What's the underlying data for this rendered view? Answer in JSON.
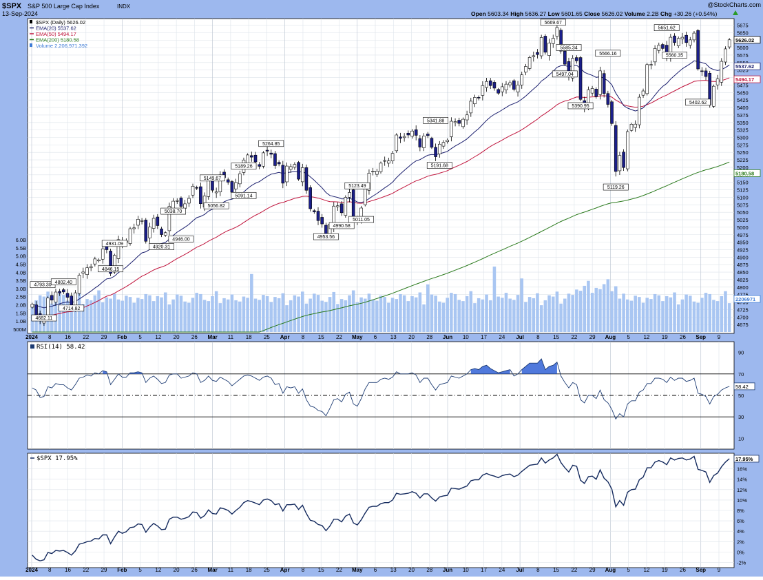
{
  "header": {
    "symbol": "$SPX",
    "name": "S&P 500 Large Cap Index",
    "exchange": "INDX",
    "date": "13-Sep-2024",
    "watermark": "@StockCharts.com",
    "ohlc": {
      "open_label": "Open",
      "open": "5603.34",
      "high_label": "High",
      "high": "5636.27",
      "low_label": "Low",
      "low": "5601.65",
      "close_label": "Close",
      "close": "5626.02",
      "volume_label": "Volume",
      "volume": "2.2B",
      "chg_label": "Chg",
      "chg": "+30.26 (+0.54%)",
      "chg_icon": "triangle-up-icon"
    }
  },
  "price_legend": [
    {
      "text": "$SPX (Daily) 5626.02",
      "color": "#000000",
      "marker": "candle-icon"
    },
    {
      "text": "EMA(20) 5537.62",
      "color": "#1b1f6e",
      "marker": "line"
    },
    {
      "text": "EMA(50) 5494.17",
      "color": "#c0143c",
      "marker": "line"
    },
    {
      "text": "EMA(200) 5180.58",
      "color": "#2a7a1c",
      "marker": "line"
    },
    {
      "text": "Volume 2,206,971,392",
      "color": "#3d7bd6",
      "marker": "volume-icon"
    }
  ],
  "colors": {
    "frame": "#9db8ee",
    "up_candle": "#ffffff",
    "down_candle": "#1b1f8a",
    "ema20": "#1b1f6e",
    "ema50": "#c0143c",
    "ema200": "#2a7a1c",
    "volume": "#a9c6f2",
    "rsi_line": "#1b3a72",
    "rsi_fill": "#3d6ad8",
    "perf_line": "#142a5e",
    "grid": "#dde3ea"
  },
  "rsi_panel": {
    "label": "RSI(14) 58.42",
    "current": "58.42",
    "ticks": [
      "90",
      "70",
      "50",
      "30",
      "10"
    ]
  },
  "perf_panel": {
    "label": "$SPX 17.95%",
    "current": "17.95%",
    "ticks": [
      "16%",
      "14%",
      "12%",
      "10%",
      "8%",
      "6%",
      "4%",
      "2%",
      "0%",
      "-2%"
    ]
  },
  "chart_data": {
    "type": "line",
    "title": "$SPX S&P 500 Large Cap Index INDX",
    "subtitle": "13-Sep-2024",
    "x_labels": [
      "2024",
      "8",
      "16",
      "22",
      "29",
      "Feb",
      "5",
      "12",
      "20",
      "26",
      "Mar",
      "11",
      "18",
      "25",
      "Apr",
      "8",
      "15",
      "22",
      "May",
      "6",
      "13",
      "20",
      "28",
      "Jun",
      "10",
      "17",
      "24",
      "Jul",
      "8",
      "15",
      "22",
      "29",
      "Aug",
      "5",
      "12",
      "19",
      "26",
      "Sep",
      "9"
    ],
    "y_ticks": [
      "5675",
      "5650",
      "5625",
      "5600",
      "5575",
      "5550",
      "5525",
      "5500",
      "5475",
      "5450",
      "5425",
      "5400",
      "5375",
      "5350",
      "5325",
      "5300",
      "5275",
      "5250",
      "5225",
      "5200",
      "5175",
      "5150",
      "5125",
      "5100",
      "5075",
      "5050",
      "5025",
      "5000",
      "4975",
      "4950",
      "4925",
      "4900",
      "4875",
      "4850",
      "4825",
      "4800",
      "4775",
      "4750",
      "4725",
      "4700",
      "4675"
    ],
    "ylim": [
      4650,
      5690
    ],
    "volume_ticks": [
      "6.0B",
      "5.5B",
      "5.0B",
      "4.5B",
      "4.0B",
      "3.5B",
      "3.0B",
      "2.5B",
      "2.0B",
      "1.5B",
      "1.0B",
      "500M"
    ],
    "price_marks": [
      {
        "label": "5626.02",
        "value": 5626.02,
        "color": "#000000"
      },
      {
        "label": "5537.62",
        "value": 5537.62,
        "color": "#1b1f6e"
      },
      {
        "label": "5494.17",
        "value": 5494.17,
        "color": "#c0143c"
      },
      {
        "label": "5180.58",
        "value": 5180.58,
        "color": "#2a7a1c"
      },
      {
        "label": "2206971392",
        "value": 4725,
        "color": "#3d7bd6"
      }
    ],
    "closes": [
      4742.83,
      4704.81,
      4688.68,
      4697.24,
      4763.54,
      4756.5,
      4783.45,
      4780.24,
      4783.83,
      4765.98,
      4739.21,
      4780.94,
      4839.81,
      4850.43,
      4864.6,
      4868.55,
      4894.16,
      4890.97,
      4927.93,
      4924.97,
      4845.65,
      4906.19,
      4958.61,
      4942.81,
      4954.23,
      4995.06,
      4997.91,
      5026.61,
      5021.84,
      4953.17,
      5000.62,
      5029.73,
      5005.57,
      4975.51,
      4981.8,
      5069.53,
      5087.03,
      5088.8,
      5069.76,
      5078.18,
      5096.27,
      5137.08,
      5130.95,
      5078.65,
      5104.76,
      5157.36,
      5123.69,
      5117.94,
      5175.27,
      5165.31,
      5150.48,
      5117.09,
      5149.42,
      5178.51,
      5224.62,
      5241.53,
      5234.18,
      5218.19,
      5203.58,
      5248.49,
      5254.35,
      5243.77,
      5205.81,
      5211.49,
      5147.21,
      5204.34,
      5202.39,
      5209.91,
      5160.64,
      5199.06,
      5123.41,
      5061.82,
      5051.41,
      5022.21,
      5011.12,
      4967.23,
      5010.6,
      5070.55,
      5071.63,
      5048.42,
      5099.96,
      5116.17,
      5035.69,
      5018.39,
      5064.2,
      5127.79,
      5180.74,
      5187.7,
      5187.67,
      5214.08,
      5222.68,
      5221.42,
      5246.68,
      5308.15,
      5297.1,
      5303.27,
      5308.13,
      5321.41,
      5307.01,
      5267.84,
      5304.72,
      5306.04,
      5266.95,
      5235.48,
      5277.51,
      5283.4,
      5291.34,
      5354.03,
      5352.96,
      5346.99,
      5360.79,
      5375.32,
      5421.03,
      5433.74,
      5431.6,
      5473.23,
      5487.03,
      5473.17,
      5464.62,
      5447.87,
      5469.3,
      5477.9,
      5482.87,
      5460.48,
      5475.09,
      5509.01,
      5537.02,
      5567.19,
      5572.85,
      5576.98,
      5633.91,
      5584.54,
      5615.35,
      5631.22,
      5667.2,
      5588.27,
      5544.59,
      5505.0,
      5564.41,
      5555.74,
      5427.13,
      5399.22,
      5459.1,
      5463.54,
      5436.44,
      5522.3,
      5446.68,
      5410.25,
      5346.56,
      5186.33,
      5240.03,
      5199.5,
      5319.31,
      5344.16,
      5344.39,
      5434.43,
      5455.21,
      5543.22,
      5543.55,
      5597.12,
      5608.25,
      5597.12,
      5570.64,
      5634.61,
      5616.84,
      5630.61,
      5634.58,
      5616.84,
      5625.8,
      5648.4,
      5528.93,
      5520.07,
      5503.41,
      5408.42,
      5471.05,
      5495.52,
      5554.13,
      5595.76,
      5626.02
    ],
    "ema20_last": 5537.62,
    "ema50_last": 5494.17,
    "ema200_last": 5180.58,
    "annotations": [
      {
        "text": "4793.30",
        "value": 4793.3,
        "idx": 0
      },
      {
        "text": "4682.11",
        "value": 4682.11,
        "idx": 3
      },
      {
        "text": "4802.40",
        "value": 4802.4,
        "idx": 8
      },
      {
        "text": "4714.82",
        "value": 4714.82,
        "idx": 10
      },
      {
        "text": "4931.09",
        "value": 4931.09,
        "idx": 21
      },
      {
        "text": "4846.15",
        "value": 4846.15,
        "idx": 20
      },
      {
        "text": "4920.31",
        "value": 4920.31,
        "idx": 33
      },
      {
        "text": "5038.70",
        "value": 5038.7,
        "idx": 36
      },
      {
        "text": "4946.00",
        "value": 4946.0,
        "idx": 38
      },
      {
        "text": "5149.67",
        "value": 5149.67,
        "idx": 46
      },
      {
        "text": "5056.82",
        "value": 5056.82,
        "idx": 47
      },
      {
        "text": "5189.26",
        "value": 5189.26,
        "idx": 54
      },
      {
        "text": "5091.14",
        "value": 5091.14,
        "idx": 54
      },
      {
        "text": "5264.85",
        "value": 5264.85,
        "idx": 61
      },
      {
        "text": "4953.56",
        "value": 4953.56,
        "idx": 75
      },
      {
        "text": "5123.49",
        "value": 5123.49,
        "idx": 83
      },
      {
        "text": "4990.58",
        "value": 4990.58,
        "idx": 79
      },
      {
        "text": "5011.05",
        "value": 5011.05,
        "idx": 84
      },
      {
        "text": "5341.88",
        "value": 5341.88,
        "idx": 103
      },
      {
        "text": "5191.68",
        "value": 5191.68,
        "idx": 104
      },
      {
        "text": "5669.67",
        "value": 5669.67,
        "idx": 133
      },
      {
        "text": "5585.34",
        "value": 5585.34,
        "idx": 137
      },
      {
        "text": "5497.04",
        "value": 5497.04,
        "idx": 136
      },
      {
        "text": "5390.95",
        "value": 5390.95,
        "idx": 140
      },
      {
        "text": "5566.16",
        "value": 5566.16,
        "idx": 147
      },
      {
        "text": "5119.26",
        "value": 5119.26,
        "idx": 149
      },
      {
        "text": "5651.62",
        "value": 5651.62,
        "idx": 162
      },
      {
        "text": "5560.35",
        "value": 5560.35,
        "idx": 164
      },
      {
        "text": "5402.62",
        "value": 5402.62,
        "idx": 170
      }
    ],
    "rsi_values": [
      57,
      55,
      48,
      49,
      58,
      57,
      61,
      60,
      60,
      57,
      55,
      60,
      66,
      67,
      69,
      68,
      71,
      70,
      73,
      72,
      60,
      65,
      70,
      67,
      67,
      71,
      71,
      72,
      71,
      62,
      66,
      68,
      65,
      61,
      62,
      69,
      70,
      70,
      66,
      67,
      68,
      71,
      70,
      62,
      64,
      68,
      64,
      63,
      67,
      65,
      63,
      59,
      62,
      65,
      68,
      69,
      68,
      66,
      64,
      67,
      68,
      66,
      60,
      61,
      52,
      58,
      57,
      58,
      52,
      56,
      46,
      40,
      39,
      36,
      35,
      31,
      38,
      46,
      47,
      44,
      51,
      53,
      42,
      40,
      47,
      56,
      62,
      62,
      62,
      65,
      66,
      65,
      67,
      72,
      70,
      70,
      70,
      71,
      69,
      62,
      66,
      66,
      60,
      55,
      60,
      61,
      62,
      68,
      67,
      66,
      68,
      70,
      74,
      75,
      74,
      77,
      78,
      75,
      73,
      71,
      72,
      73,
      74,
      68,
      70,
      74,
      77,
      80,
      80,
      80,
      84,
      74,
      77,
      78,
      81,
      68,
      62,
      57,
      62,
      60,
      46,
      43,
      50,
      50,
      47,
      55,
      46,
      43,
      37,
      28,
      33,
      30,
      42,
      45,
      45,
      53,
      55,
      61,
      61,
      66,
      66,
      65,
      62,
      67,
      64,
      66,
      66,
      63,
      64,
      66,
      52,
      51,
      49,
      42,
      49,
      51,
      55,
      57,
      58.42
    ],
    "rsi_ylim": [
      0,
      100
    ],
    "rsi_levels": [
      70,
      50,
      30
    ],
    "perf_values": [
      -0.6,
      -1.4,
      -1.7,
      -1.5,
      -0.1,
      -0.3,
      0.3,
      0.2,
      0.3,
      -0.1,
      -0.6,
      0.2,
      1.5,
      1.7,
      2.0,
      2.1,
      2.6,
      2.5,
      3.3,
      3.3,
      1.6,
      2.9,
      4.0,
      3.6,
      3.9,
      4.7,
      4.8,
      5.4,
      5.3,
      3.8,
      4.8,
      5.5,
      5.0,
      4.3,
      4.4,
      6.3,
      6.7,
      6.7,
      6.3,
      6.5,
      6.8,
      7.7,
      7.6,
      6.5,
      7.0,
      8.1,
      7.4,
      7.3,
      8.5,
      8.3,
      8.0,
      7.3,
      8.0,
      8.6,
      9.5,
      9.9,
      9.7,
      9.4,
      9.1,
      10.0,
      10.2,
      9.9,
      9.1,
      9.3,
      7.9,
      9.1,
      9.1,
      9.2,
      8.2,
      9.0,
      7.4,
      6.1,
      5.9,
      5.3,
      5.1,
      4.1,
      5.0,
      6.3,
      6.3,
      5.8,
      6.9,
      7.3,
      5.6,
      5.2,
      6.2,
      7.5,
      8.6,
      8.8,
      8.8,
      9.3,
      9.5,
      9.5,
      10.0,
      11.3,
      11.1,
      11.2,
      11.3,
      11.6,
      11.3,
      10.4,
      11.2,
      11.2,
      10.4,
      9.8,
      10.6,
      10.8,
      10.9,
      12.3,
      12.2,
      12.1,
      12.4,
      12.7,
      13.7,
      13.9,
      13.9,
      14.8,
      15.1,
      14.8,
      14.6,
      14.3,
      14.7,
      14.9,
      15.0,
      14.5,
      14.8,
      15.5,
      16.1,
      16.7,
      16.8,
      16.9,
      18.1,
      17.1,
      17.7,
      18.1,
      18.8,
      17.2,
      16.2,
      15.4,
      16.7,
      16.5,
      13.8,
      13.2,
      14.5,
      14.6,
      14.0,
      15.8,
      14.2,
      13.5,
      12.1,
      8.7,
      9.9,
      9.0,
      11.5,
      12.0,
      12.1,
      13.9,
      14.4,
      16.2,
      16.2,
      17.3,
      17.6,
      17.3,
      16.8,
      18.1,
      17.7,
      18.0,
      18.1,
      17.7,
      17.9,
      18.4,
      15.9,
      15.7,
      15.4,
      13.4,
      14.7,
      15.2,
      16.4,
      17.3,
      17.95
    ],
    "perf_ylim": [
      -3,
      19
    ]
  }
}
